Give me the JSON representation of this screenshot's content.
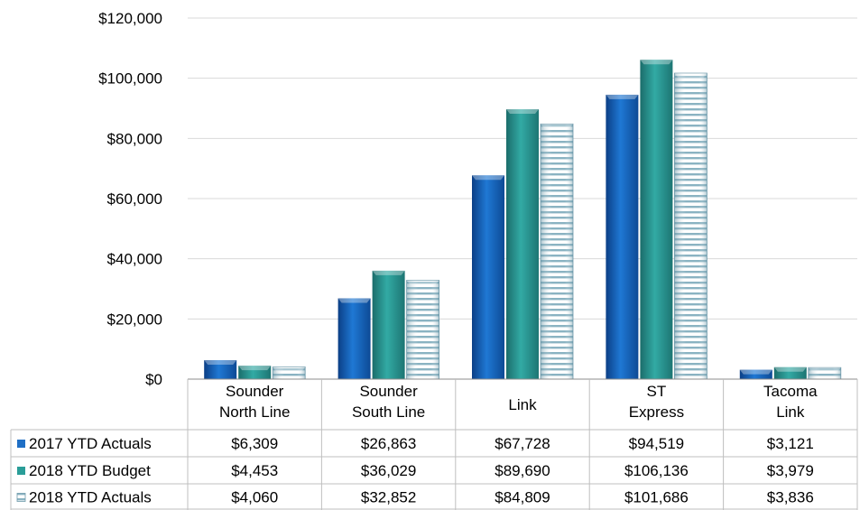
{
  "chart_data": {
    "type": "bar",
    "categories": [
      [
        "Sounder",
        "North Line"
      ],
      [
        "Sounder",
        "South Line"
      ],
      [
        "Link"
      ],
      [
        "ST",
        "Express"
      ],
      [
        "Tacoma",
        "Link"
      ]
    ],
    "series": [
      {
        "name": "2017 YTD Actuals",
        "values": [
          6309,
          26863,
          67728,
          94519,
          3121
        ],
        "labels": [
          "$6,309",
          "$26,863",
          "$67,728",
          "$94,519",
          "$3,121"
        ],
        "color": "#1f6fc5",
        "pattern": "solid"
      },
      {
        "name": "2018 YTD Budget",
        "values": [
          4453,
          36029,
          89690,
          106136,
          3979
        ],
        "labels": [
          "$4,453",
          "$36,029",
          "$89,690",
          "$106,136",
          "$3,979"
        ],
        "color": "#2a9d98",
        "pattern": "solid"
      },
      {
        "name": "2018 YTD Actuals",
        "values": [
          4060,
          32852,
          84809,
          101686,
          3836
        ],
        "labels": [
          "$4,060",
          "$32,852",
          "$84,809",
          "$101,686",
          "$3,836"
        ],
        "color": "#7fa8b8",
        "pattern": "horizontal-stripes"
      }
    ],
    "y_ticks": [
      "$0",
      "$20,000",
      "$40,000",
      "$60,000",
      "$80,000",
      "$100,000",
      "$120,000"
    ],
    "ylim": [
      0,
      120000
    ],
    "grid": true,
    "legend": "data-table-rows"
  }
}
